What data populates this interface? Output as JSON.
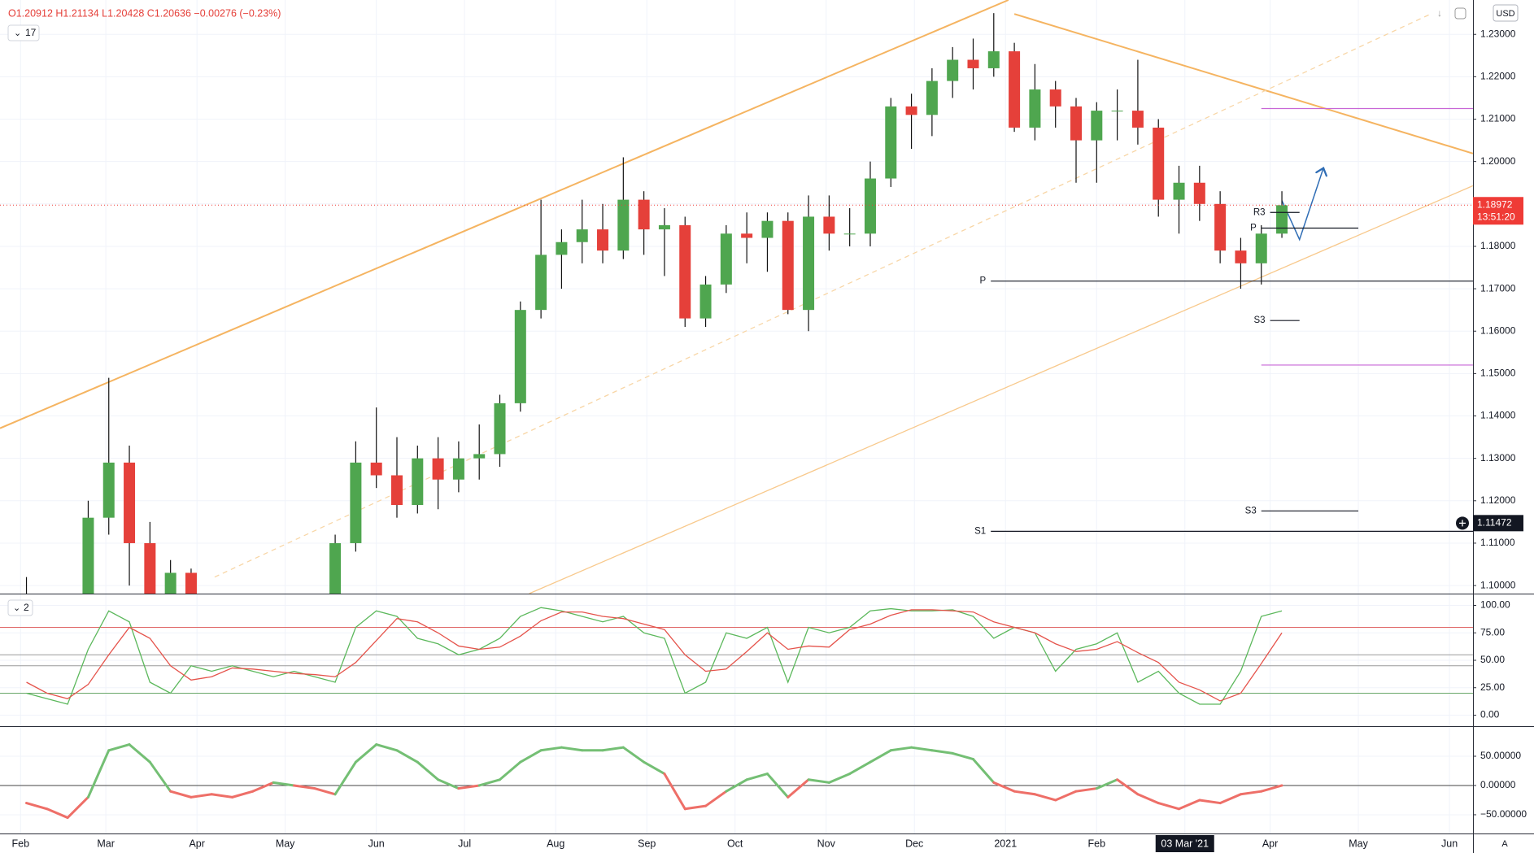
{
  "chart_data": [
    {
      "type": "candlestick",
      "ohlc_header": "O1.20912 H1.21134 L1.20428 C1.20636 −0.00276 (−0.23%)",
      "legend_toggle": "17",
      "currency": "USD",
      "scale_mode": "A",
      "x": [
        2,
        9,
        16,
        23,
        30,
        37,
        44,
        51,
        58,
        65,
        72,
        79,
        86,
        93,
        100,
        107,
        114,
        121,
        128,
        135,
        142,
        149,
        156,
        163,
        170,
        177,
        184,
        191,
        198,
        205,
        212,
        219,
        226,
        233,
        240,
        247,
        254,
        261,
        268,
        275,
        282,
        289,
        296,
        303,
        310,
        317,
        324,
        331,
        338,
        345,
        352,
        359,
        366,
        373,
        380,
        387,
        394,
        401,
        408,
        415,
        422,
        429
      ],
      "open": [
        1.098,
        1.094,
        1.083,
        1.084,
        1.116,
        1.129,
        1.11,
        1.069,
        1.103,
        1.081,
        1.094,
        1.087,
        1.082,
        1.084,
        1.082,
        1.082,
        1.11,
        1.129,
        1.126,
        1.119,
        1.13,
        1.125,
        1.13,
        1.131,
        1.143,
        1.165,
        1.178,
        1.181,
        1.184,
        1.179,
        1.191,
        1.184,
        1.185,
        1.163,
        1.171,
        1.183,
        1.182,
        1.186,
        1.165,
        1.187,
        1.183,
        1.183,
        1.196,
        1.213,
        1.211,
        1.219,
        1.224,
        1.222,
        1.226,
        1.208,
        1.217,
        1.213,
        1.205,
        1.212,
        1.212,
        1.208,
        1.191,
        1.195,
        1.19,
        1.179,
        1.176,
        1.183
      ],
      "high": [
        1.102,
        1.096,
        1.089,
        1.12,
        1.149,
        1.133,
        1.115,
        1.106,
        1.104,
        1.098,
        1.098,
        1.092,
        1.09,
        1.091,
        1.088,
        1.112,
        1.134,
        1.142,
        1.135,
        1.133,
        1.135,
        1.134,
        1.138,
        1.145,
        1.167,
        1.191,
        1.184,
        1.191,
        1.19,
        1.201,
        1.193,
        1.189,
        1.187,
        1.173,
        1.185,
        1.188,
        1.188,
        1.188,
        1.192,
        1.192,
        1.189,
        1.2,
        1.215,
        1.216,
        1.222,
        1.227,
        1.229,
        1.235,
        1.228,
        1.223,
        1.219,
        1.215,
        1.214,
        1.217,
        1.224,
        1.21,
        1.199,
        1.199,
        1.193,
        1.182,
        1.185,
        1.193
      ],
      "low": [
        1.09,
        1.078,
        1.078,
        1.082,
        1.112,
        1.1,
        1.064,
        1.066,
        1.077,
        1.079,
        1.082,
        1.076,
        1.077,
        1.076,
        1.077,
        1.08,
        1.108,
        1.123,
        1.116,
        1.117,
        1.118,
        1.122,
        1.125,
        1.128,
        1.141,
        1.163,
        1.17,
        1.176,
        1.176,
        1.177,
        1.178,
        1.173,
        1.161,
        1.161,
        1.169,
        1.176,
        1.174,
        1.164,
        1.16,
        1.179,
        1.18,
        1.18,
        1.194,
        1.203,
        1.206,
        1.215,
        1.217,
        1.22,
        1.207,
        1.205,
        1.208,
        1.195,
        1.195,
        1.205,
        1.204,
        1.187,
        1.183,
        1.186,
        1.176,
        1.17,
        1.171,
        1.182
      ],
      "close": [
        1.094,
        1.083,
        1.084,
        1.116,
        1.129,
        1.11,
        1.069,
        1.103,
        1.081,
        1.094,
        1.087,
        1.082,
        1.084,
        1.082,
        1.082,
        1.11,
        1.129,
        1.126,
        1.119,
        1.13,
        1.125,
        1.13,
        1.131,
        1.143,
        1.165,
        1.178,
        1.181,
        1.184,
        1.179,
        1.191,
        1.184,
        1.185,
        1.163,
        1.171,
        1.183,
        1.182,
        1.186,
        1.165,
        1.187,
        1.183,
        1.183,
        1.196,
        1.213,
        1.211,
        1.219,
        1.224,
        1.222,
        1.226,
        1.208,
        1.217,
        1.213,
        1.205,
        1.212,
        1.212,
        1.208,
        1.191,
        1.195,
        1.19,
        1.179,
        1.176,
        1.183,
        1.1897
      ],
      "up_color": "#4fa64f",
      "down_color": "#e5403a",
      "wick_color": "#111111",
      "grid": true,
      "xlim": [
        -7,
        494
      ],
      "xticks": [
        {
          "value": 0,
          "label": "Feb"
        },
        {
          "value": 29,
          "label": "Mar"
        },
        {
          "value": 60,
          "label": "Apr"
        },
        {
          "value": 90,
          "label": "May"
        },
        {
          "value": 121,
          "label": "Jun"
        },
        {
          "value": 151,
          "label": "Jul"
        },
        {
          "value": 182,
          "label": "Aug"
        },
        {
          "value": 213,
          "label": "Sep"
        },
        {
          "value": 243,
          "label": "Oct"
        },
        {
          "value": 274,
          "label": "Nov"
        },
        {
          "value": 304,
          "label": "Dec"
        },
        {
          "value": 335,
          "label": "2021"
        },
        {
          "value": 366,
          "label": "Feb"
        },
        {
          "value": 396,
          "label": "03 Mar '21",
          "highlight": true
        },
        {
          "value": 425,
          "label": "Apr"
        },
        {
          "value": 455,
          "label": "May"
        },
        {
          "value": 486,
          "label": "Jun"
        }
      ],
      "ylim": [
        1.0981,
        1.2381
      ],
      "yticks": [
        {
          "value": 1.23,
          "label": "1.23000"
        },
        {
          "value": 1.22,
          "label": "1.22000"
        },
        {
          "value": 1.21,
          "label": "1.21000"
        },
        {
          "value": 1.2,
          "label": "1.20000"
        },
        {
          "value": 1.19,
          "label": "1.19000"
        },
        {
          "value": 1.18,
          "label": "1.18000"
        },
        {
          "value": 1.17,
          "label": "1.17000"
        },
        {
          "value": 1.16,
          "label": "1.16000"
        },
        {
          "value": 1.15,
          "label": "1.15000"
        },
        {
          "value": 1.14,
          "label": "1.14000"
        },
        {
          "value": 1.13,
          "label": "1.13000"
        },
        {
          "value": 1.12,
          "label": "1.12000"
        },
        {
          "value": 1.11,
          "label": "1.11000"
        },
        {
          "value": 1.1,
          "label": "1.10000"
        }
      ],
      "last_price": {
        "value": 1.18972,
        "label": "1.18972",
        "countdown": "13:51:20",
        "color": "#ef3b36"
      },
      "crosshair_price": {
        "value": 1.11472,
        "label": "1.11472"
      },
      "levels": [
        {
          "label": "P",
          "value": 1.1718,
          "x": [
            330,
            494
          ],
          "color": "#131722"
        },
        {
          "label": "S1",
          "value": 1.1128,
          "x": [
            330,
            494
          ],
          "color": "#131722"
        },
        {
          "label": "R3",
          "value": 1.188,
          "x": [
            425,
            435
          ],
          "color": "#131722"
        },
        {
          "label": "P",
          "value": 1.1843,
          "x": [
            422,
            455
          ],
          "color": "#131722"
        },
        {
          "label": "S3",
          "value": 1.1625,
          "x": [
            425,
            435
          ],
          "color": "#131722"
        },
        {
          "label": "S3",
          "value": 1.1176,
          "x": [
            422,
            455
          ],
          "color": "#131722"
        },
        {
          "value": 1.2125,
          "x": [
            422,
            494
          ],
          "color": "#c765d6"
        },
        {
          "value": 1.152,
          "x": [
            422,
            494
          ],
          "color": "#c765d6"
        }
      ],
      "trendlines": [
        {
          "points": [
            [
              -7,
              1.1371
            ],
            [
              336,
              1.2381
            ]
          ],
          "color": "#f5b461",
          "width": 2
        },
        {
          "points": [
            [
              338,
              1.2348
            ],
            [
              494,
              1.2019
            ]
          ],
          "color": "#f5b461",
          "width": 2
        },
        {
          "points": [
            [
              173,
              1.0981
            ],
            [
              494,
              1.1943
            ]
          ],
          "color": "#f8c98c",
          "width": 1.3
        },
        {
          "points": [
            [
              66,
              1.102
            ],
            [
              479,
              1.2346
            ]
          ],
          "color": "#f8d6a6",
          "width": 1.3,
          "dashed": true
        },
        {
          "points": [
            [
              429,
              1.1908
            ],
            [
              435,
              1.1816
            ],
            [
              443,
              1.1982
            ]
          ],
          "color": "#2f6db5",
          "width": 1.5,
          "arrow": true
        }
      ]
    },
    {
      "type": "line",
      "legend_toggle": "2",
      "ylim": [
        -10,
        110
      ],
      "yticks": [
        {
          "value": 100,
          "label": "100.00"
        },
        {
          "value": 75,
          "label": "75.00"
        },
        {
          "value": 50,
          "label": "50.00"
        },
        {
          "value": 25,
          "label": "25.00"
        },
        {
          "value": 0,
          "label": "0.00"
        }
      ],
      "hlines": [
        {
          "value": 80,
          "color": "#e06666"
        },
        {
          "value": 55,
          "color": "#9a9a9a"
        },
        {
          "value": 45,
          "color": "#9a9a9a"
        },
        {
          "value": 20,
          "color": "#6aa86a"
        }
      ],
      "series": [
        {
          "color": "#5cb85c",
          "values": [
            20,
            15,
            10,
            60,
            95,
            85,
            30,
            20,
            45,
            40,
            45,
            40,
            35,
            40,
            35,
            30,
            80,
            95,
            90,
            70,
            65,
            55,
            60,
            70,
            90,
            98,
            95,
            90,
            85,
            90,
            75,
            70,
            20,
            30,
            75,
            70,
            80,
            30,
            80,
            75,
            80,
            95,
            97,
            95,
            95,
            96,
            90,
            70,
            80,
            75,
            40,
            60,
            65,
            75,
            30,
            40,
            20,
            10,
            10,
            40,
            90,
            95
          ]
        },
        {
          "color": "#e5534b",
          "values": [
            30,
            20,
            15,
            28,
            55,
            80,
            70,
            45,
            32,
            35,
            43,
            42,
            40,
            38,
            37,
            35,
            48,
            68,
            88,
            85,
            75,
            63,
            60,
            62,
            72,
            86,
            94,
            94,
            90,
            88,
            83,
            78,
            55,
            40,
            42,
            58,
            75,
            60,
            63,
            62,
            78,
            83,
            91,
            96,
            96,
            95,
            94,
            85,
            80,
            75,
            65,
            58,
            60,
            67,
            57,
            48,
            30,
            23,
            13,
            20,
            47,
            75
          ]
        }
      ]
    },
    {
      "type": "line",
      "ylim": [
        -82,
        100
      ],
      "yticks": [
        {
          "value": 50,
          "label": "50.00000"
        },
        {
          "value": 0,
          "label": "0.00000"
        },
        {
          "value": -50,
          "label": "−50.00000"
        }
      ],
      "hlines": [
        {
          "value": 0,
          "color": "#444444"
        }
      ],
      "series": [
        {
          "positive_color": "#74bf74",
          "negative_color": "#ee6f68",
          "width": 3,
          "values": [
            -30,
            -40,
            -55,
            -20,
            60,
            70,
            40,
            -10,
            -20,
            -15,
            -20,
            -10,
            5,
            0,
            -5,
            -15,
            40,
            70,
            60,
            40,
            10,
            -5,
            0,
            10,
            40,
            60,
            65,
            60,
            60,
            65,
            40,
            20,
            -40,
            -35,
            -10,
            10,
            20,
            -20,
            10,
            5,
            20,
            40,
            60,
            65,
            60,
            55,
            45,
            5,
            -10,
            -15,
            -25,
            -10,
            -5,
            10,
            -15,
            -30,
            -40,
            -25,
            -30,
            -15,
            -10,
            0
          ]
        }
      ]
    }
  ]
}
